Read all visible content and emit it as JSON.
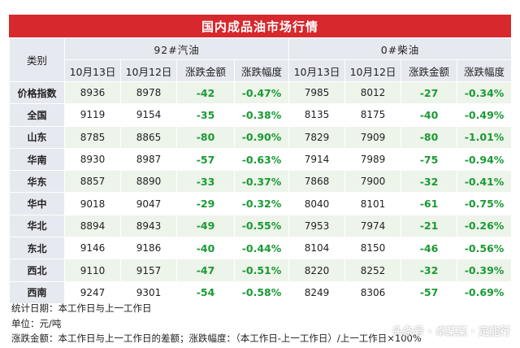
{
  "title": "国内成品油市场行情",
  "header": {
    "category": "类别",
    "gasoline": "92#汽油",
    "diesel": "0#柴油",
    "columns": [
      "10月13日",
      "10月12日",
      "涨跌金额",
      "涨跌幅度",
      "10月13日",
      "10月12日",
      "涨跌金额",
      "涨跌幅度"
    ]
  },
  "rows": [
    {
      "name": "价格指数",
      "cells": [
        "8936",
        "8978",
        "-42",
        "-0.47%",
        "7985",
        "8012",
        "-27",
        "-0.34%"
      ]
    },
    {
      "name": "全国",
      "cells": [
        "9119",
        "9154",
        "-35",
        "-0.38%",
        "8135",
        "8175",
        "-40",
        "-0.49%"
      ]
    },
    {
      "name": "山东",
      "cells": [
        "8785",
        "8865",
        "-80",
        "-0.90%",
        "7829",
        "7909",
        "-80",
        "-1.01%"
      ]
    },
    {
      "name": "华南",
      "cells": [
        "8930",
        "8987",
        "-57",
        "-0.63%",
        "7914",
        "7989",
        "-75",
        "-0.94%"
      ]
    },
    {
      "name": "华东",
      "cells": [
        "8857",
        "8890",
        "-33",
        "-0.37%",
        "7868",
        "7900",
        "-32",
        "-0.41%"
      ]
    },
    {
      "name": "华中",
      "cells": [
        "9018",
        "9047",
        "-29",
        "-0.32%",
        "8040",
        "8101",
        "-61",
        "-0.75%"
      ]
    },
    {
      "name": "华北",
      "cells": [
        "8894",
        "8943",
        "-49",
        "-0.55%",
        "7953",
        "7974",
        "-21",
        "-0.26%"
      ]
    },
    {
      "name": "东北",
      "cells": [
        "9146",
        "9186",
        "-40",
        "-0.44%",
        "8104",
        "8150",
        "-46",
        "-0.56%"
      ]
    },
    {
      "name": "西北",
      "cells": [
        "9110",
        "9157",
        "-47",
        "-0.51%",
        "8220",
        "8252",
        "-32",
        "-0.39%"
      ]
    },
    {
      "name": "西南",
      "cells": [
        "9247",
        "9301",
        "-54",
        "-0.58%",
        "8249",
        "8306",
        "-57",
        "-0.69%"
      ]
    }
  ],
  "notes": {
    "line1": "统计日期：本工作日与上一工作日",
    "line2": "单位：元/吨",
    "line3": "涨跌金额：本工作日与上一工作日的差额；涨跌幅度：（本工作日-上一工作日）/上一工作日×100%"
  },
  "watermark": "头条号 · 卓某某 · 定能行",
  "colors": {
    "title_bg": "#d7282d",
    "header_bg": "#e6e9f0",
    "row_stripe": "#edf4ea",
    "change_text": "#1a9a34"
  }
}
